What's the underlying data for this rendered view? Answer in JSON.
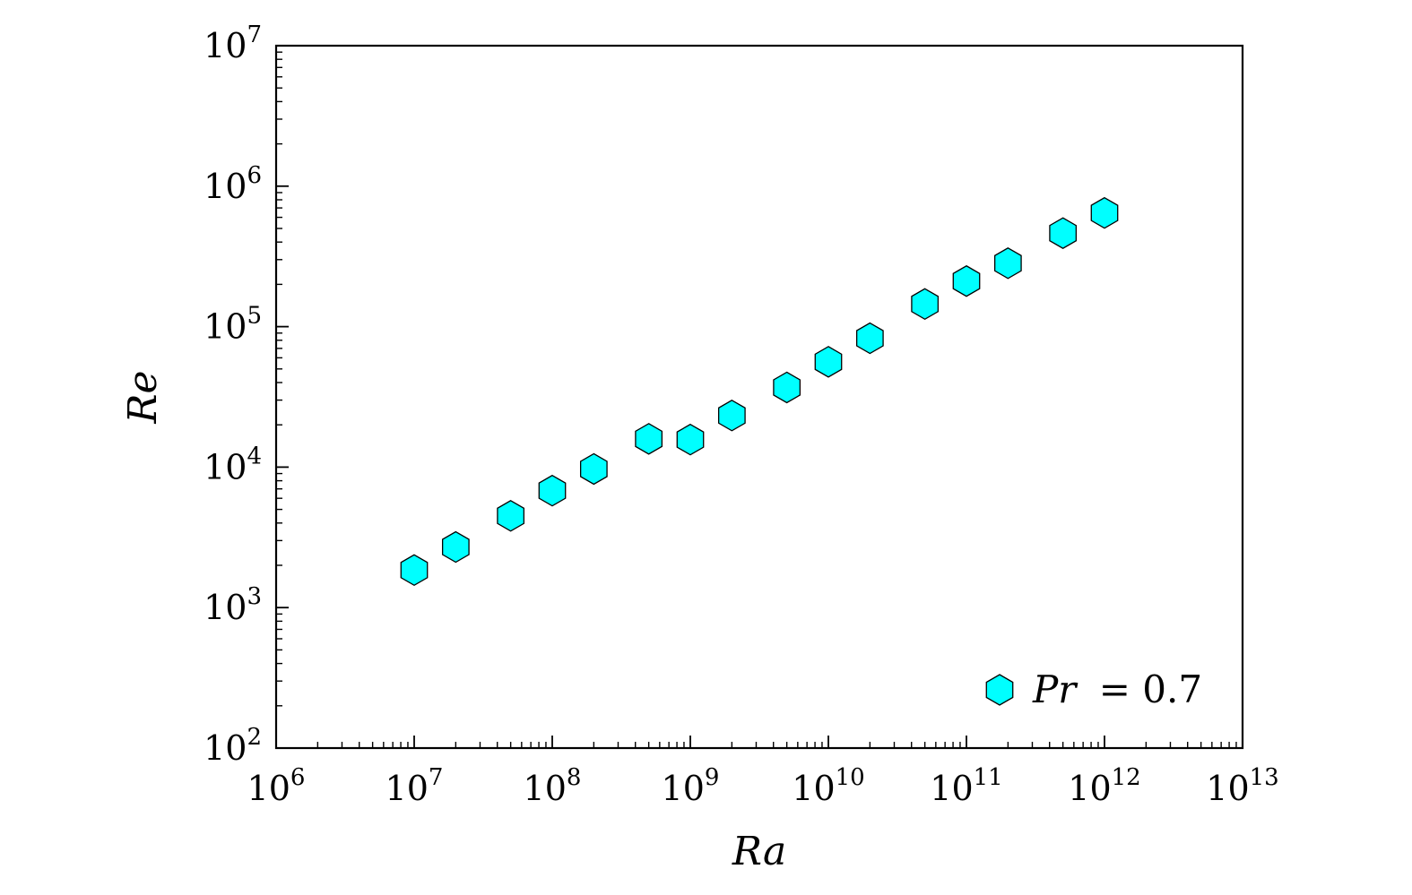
{
  "chart_data": {
    "type": "scatter",
    "title": "",
    "xlabel": "Ra",
    "ylabel": "Re",
    "x_scale": "log",
    "y_scale": "log",
    "xlim": [
      1000000,
      10000000000000
    ],
    "ylim": [
      100,
      10000000
    ],
    "x_ticks": [
      {
        "base": "10",
        "exp": "6",
        "value": 1000000
      },
      {
        "base": "10",
        "exp": "7",
        "value": 10000000
      },
      {
        "base": "10",
        "exp": "8",
        "value": 100000000
      },
      {
        "base": "10",
        "exp": "9",
        "value": 1000000000
      },
      {
        "base": "10",
        "exp": "10",
        "value": 10000000000
      },
      {
        "base": "10",
        "exp": "11",
        "value": 100000000000
      },
      {
        "base": "10",
        "exp": "12",
        "value": 1000000000000
      },
      {
        "base": "10",
        "exp": "13",
        "value": 10000000000000
      }
    ],
    "y_ticks": [
      {
        "base": "10",
        "exp": "2",
        "value": 100
      },
      {
        "base": "10",
        "exp": "3",
        "value": 1000
      },
      {
        "base": "10",
        "exp": "4",
        "value": 10000
      },
      {
        "base": "10",
        "exp": "5",
        "value": 100000
      },
      {
        "base": "10",
        "exp": "6",
        "value": 1000000
      },
      {
        "base": "10",
        "exp": "7",
        "value": 10000000
      }
    ],
    "grid": false,
    "legend_position": "bottom-right",
    "series": [
      {
        "name": "Pr = 0.7",
        "legend_symbol": "Pr",
        "legend_eq": "= 0.7",
        "marker": "hexagon",
        "color": "#00FFFF",
        "edge_color": "#000000",
        "x": [
          10000000,
          20000000,
          50000000,
          100000000,
          200000000,
          500000000,
          1000000000,
          2000000000,
          5000000000,
          10000000000,
          20000000000,
          50000000000,
          100000000000,
          200000000000,
          500000000000,
          1000000000000
        ],
        "y": [
          1850,
          2700,
          4500,
          6800,
          9700,
          15900,
          15700,
          23300,
          36900,
          56200,
          82700,
          145000,
          211000,
          283000,
          463000,
          645000
        ]
      }
    ]
  }
}
